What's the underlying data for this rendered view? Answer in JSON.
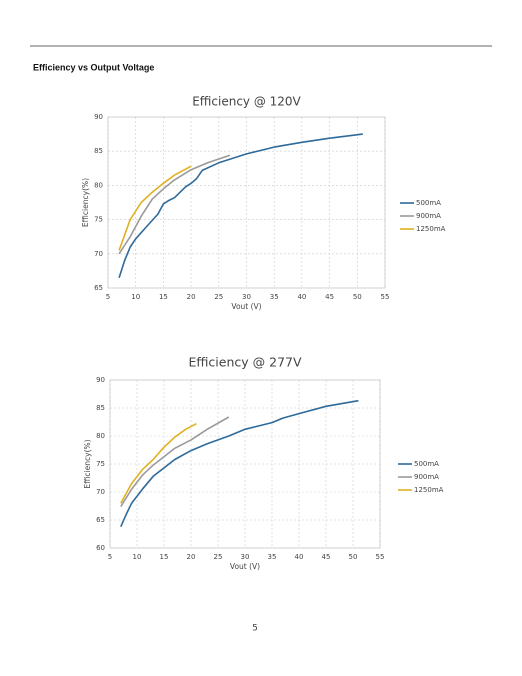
{
  "section_title": "Efficiency vs Output Voltage",
  "page_number": "5",
  "chart_data": [
    {
      "type": "line",
      "title": "Efficiency @ 120V",
      "xlabel": "Vout (V)",
      "ylabel": "Efficiency(%)",
      "xlim": [
        5,
        55
      ],
      "xticks": [
        5,
        10,
        15,
        20,
        25,
        30,
        35,
        40,
        45,
        50,
        55
      ],
      "ylim": [
        65,
        90
      ],
      "yticks": [
        65,
        70,
        75,
        80,
        85,
        90
      ],
      "grid": true,
      "legend": "right",
      "series": [
        {
          "name": "500mA",
          "color": "#2e6a9a",
          "x": [
            7,
            8,
            9,
            10,
            12,
            14,
            15,
            16,
            17,
            19,
            20,
            21,
            22,
            25,
            30,
            35,
            40,
            45,
            51
          ],
          "values": [
            66.5,
            69,
            71,
            72.2,
            74,
            75.8,
            77.3,
            77.8,
            78.2,
            79.8,
            80.3,
            81,
            82.2,
            83.3,
            84.6,
            85.6,
            86.3,
            86.9,
            87.5
          ]
        },
        {
          "name": "900mA",
          "color": "#9a9a9a",
          "x": [
            7,
            9,
            11,
            13,
            15,
            17,
            20,
            23,
            27
          ],
          "values": [
            70,
            72.5,
            75.5,
            78,
            79.5,
            80.8,
            82.3,
            83.3,
            84.4
          ]
        },
        {
          "name": "1250mA",
          "color": "#e0b020",
          "x": [
            7,
            9,
            11,
            13,
            15,
            17,
            20
          ],
          "values": [
            70.5,
            75,
            77.5,
            79,
            80.3,
            81.5,
            82.8
          ]
        }
      ]
    },
    {
      "type": "line",
      "title": "Efficiency @ 277V",
      "xlabel": "Vout (V)",
      "ylabel": "Efficiency(%)",
      "xlim": [
        5,
        55
      ],
      "xticks": [
        5,
        10,
        15,
        20,
        25,
        30,
        35,
        40,
        45,
        50,
        55
      ],
      "ylim": [
        60,
        90
      ],
      "yticks": [
        60,
        65,
        70,
        75,
        80,
        85,
        90
      ],
      "grid": true,
      "legend": "right",
      "series": [
        {
          "name": "500mA",
          "color": "#2e6a9a",
          "x": [
            7,
            8,
            9,
            11,
            13,
            15,
            17,
            20,
            23,
            27,
            30,
            35,
            37,
            40,
            45,
            51
          ],
          "values": [
            63.8,
            66,
            68,
            70.5,
            72.8,
            74.3,
            75.8,
            77.4,
            78.6,
            80,
            81.2,
            82.4,
            83.2,
            84,
            85.3,
            86.3
          ]
        },
        {
          "name": "900mA",
          "color": "#9a9a9a",
          "x": [
            7,
            9,
            11,
            13,
            15,
            17,
            20,
            23,
            27
          ],
          "values": [
            67.4,
            70.5,
            73,
            74.8,
            76.3,
            77.8,
            79.3,
            81.2,
            83.4
          ]
        },
        {
          "name": "1250mA",
          "color": "#e0b020",
          "x": [
            7,
            9,
            11,
            13,
            15,
            17,
            19,
            21
          ],
          "values": [
            68,
            71.5,
            74,
            75.8,
            78,
            79.8,
            81.2,
            82.2
          ]
        }
      ]
    }
  ]
}
